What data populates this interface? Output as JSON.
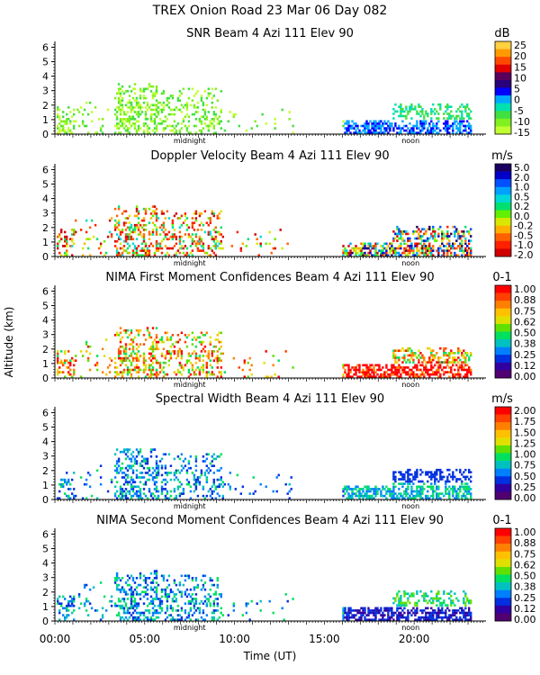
{
  "title_line": "TREX Onion Road  23 Mar 06 Day 082",
  "y_axis_label": "Altitude (km)",
  "x_axis_label": "Time (UT)",
  "chart_data": [
    {
      "type": "heatmap",
      "title": "SNR Beam 4 Azi 111 Elev 90",
      "units": "dB",
      "y_ticks": [
        "0",
        "1",
        "2",
        "3",
        "4",
        "5",
        "6"
      ],
      "ylim": [
        0,
        6.4
      ],
      "xlim": [
        0,
        24
      ],
      "x_markers": [
        "midnight",
        "noon"
      ],
      "colorbar_labels": [
        "25",
        "20",
        "15",
        "10",
        "5",
        "0",
        "-5",
        "-10",
        "-15"
      ],
      "colorbar_colors": [
        "#ffd040",
        "#ff9a00",
        "#ff4a00",
        "#e00000",
        "#5a005a",
        "#2a007a",
        "#0000ff",
        "#00a8ff",
        "#00e0b0",
        "#40e040",
        "#80f020",
        "#c0ff30"
      ],
      "scheme": "snr"
    },
    {
      "type": "heatmap",
      "title": "Doppler Velocity Beam 4 Azi 111 Elev 90",
      "units": "m/s",
      "y_ticks": [
        "0",
        "1",
        "2",
        "3",
        "4",
        "5",
        "6"
      ],
      "ylim": [
        0,
        6.4
      ],
      "xlim": [
        0,
        24
      ],
      "x_markers": [
        "midnight",
        "noon"
      ],
      "colorbar_labels": [
        "5.0",
        "2.0",
        "1.0",
        "0.5",
        "0.2",
        "0.0",
        "-0.2",
        "-0.5",
        "-1.0",
        "-2.0"
      ],
      "colorbar_colors": [
        "#1a0060",
        "#0000c8",
        "#0050ff",
        "#00a0ff",
        "#00d8d8",
        "#00e070",
        "#60f000",
        "#d8e800",
        "#ffb000",
        "#ff6000",
        "#ff2000",
        "#d00000"
      ],
      "scheme": "doppler"
    },
    {
      "type": "heatmap",
      "title": "NIMA First Moment Confidences Beam 4 Azi 111 Elev 90",
      "units": "0-1",
      "y_ticks": [
        "0",
        "1",
        "2",
        "3",
        "4",
        "5",
        "6"
      ],
      "ylim": [
        0,
        6.4
      ],
      "xlim": [
        0,
        24
      ],
      "x_markers": [
        "midnight",
        "noon"
      ],
      "colorbar_labels": [
        "1.00",
        "0.88",
        "0.75",
        "0.62",
        "0.50",
        "0.38",
        "0.25",
        "0.12",
        "0.00"
      ],
      "colorbar_colors": [
        "#ff0000",
        "#ff4000",
        "#ff8000",
        "#ffc000",
        "#e0e000",
        "#60e000",
        "#00e060",
        "#00c0c0",
        "#0080ff",
        "#0030e0",
        "#3000a0",
        "#500070"
      ],
      "scheme": "conf1"
    },
    {
      "type": "heatmap",
      "title": "Spectral Width Beam 4 Azi 111 Elev 90",
      "units": "m/s",
      "y_ticks": [
        "0",
        "1",
        "2",
        "3",
        "4",
        "5",
        "6"
      ],
      "ylim": [
        0,
        6.4
      ],
      "xlim": [
        0,
        24
      ],
      "x_markers": [
        "midnight",
        "noon"
      ],
      "colorbar_labels": [
        "2.00",
        "1.75",
        "1.50",
        "1.25",
        "1.00",
        "0.75",
        "0.50",
        "0.25",
        "0.00"
      ],
      "colorbar_colors": [
        "#ff0000",
        "#ff4000",
        "#ff8000",
        "#ffc000",
        "#e0e000",
        "#60e000",
        "#00e060",
        "#00c0c0",
        "#0080ff",
        "#0030e0",
        "#3000a0",
        "#500070"
      ],
      "scheme": "width"
    },
    {
      "type": "heatmap",
      "title": "NIMA Second Moment Confidences Beam 4 Azi 111 Elev 90",
      "units": "0-1",
      "y_ticks": [
        "0",
        "1",
        "2",
        "3",
        "4",
        "5",
        "6"
      ],
      "ylim": [
        0,
        6.4
      ],
      "xlim": [
        0,
        24
      ],
      "x_markers": [
        "midnight",
        "noon"
      ],
      "colorbar_labels": [
        "1.00",
        "0.88",
        "0.75",
        "0.62",
        "0.50",
        "0.38",
        "0.25",
        "0.12",
        "0.00"
      ],
      "colorbar_colors": [
        "#ff0000",
        "#ff4000",
        "#ff8000",
        "#ffc000",
        "#e0e000",
        "#60e000",
        "#00e060",
        "#00c0c0",
        "#0080ff",
        "#0030e0",
        "#3000a0",
        "#500070"
      ],
      "scheme": "conf2"
    }
  ],
  "x_ticks": [
    "00:00",
    "05:00",
    "10:00",
    "15:00",
    "20:00"
  ],
  "x_tick_hours": [
    0,
    5,
    10,
    15,
    20
  ]
}
